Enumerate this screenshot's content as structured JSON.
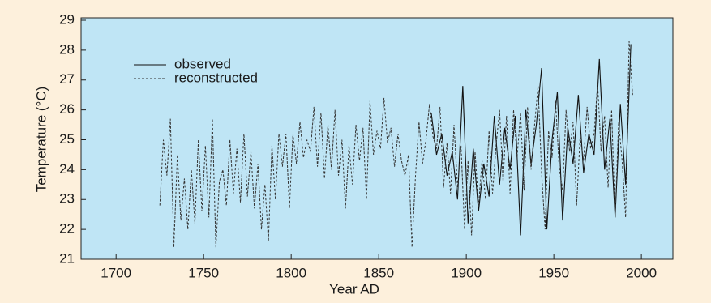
{
  "chart_data": {
    "type": "line",
    "x_label": "Year AD",
    "y_label": "Temperature (°C)",
    "xlim": [
      1680,
      2018
    ],
    "ylim": [
      21,
      29
    ],
    "xticks": [
      1700,
      1750,
      1800,
      1850,
      1900,
      1950,
      2000
    ],
    "yticks": [
      21,
      22,
      23,
      24,
      25,
      26,
      27,
      28,
      29
    ],
    "legend": "upper left",
    "series": [
      {
        "name": "observed",
        "color": "#111111",
        "style": "solid",
        "x": [
          1880,
          1883,
          1886,
          1889,
          1892,
          1895,
          1898,
          1901,
          1904,
          1907,
          1910,
          1913,
          1916,
          1919,
          1922,
          1925,
          1928,
          1931,
          1934,
          1937,
          1940,
          1943,
          1946,
          1949,
          1952,
          1955,
          1958,
          1961,
          1964,
          1967,
          1970,
          1973,
          1976,
          1979,
          1982,
          1985,
          1988,
          1991,
          1994
        ],
        "values": [
          25.9,
          24.5,
          25.2,
          23.8,
          24.6,
          23.0,
          26.8,
          22.2,
          24.7,
          22.6,
          24.2,
          23.1,
          25.8,
          23.5,
          25.4,
          24.0,
          25.8,
          21.8,
          26.0,
          24.2,
          25.5,
          27.4,
          22.0,
          25.0,
          26.6,
          22.3,
          25.4,
          24.2,
          26.5,
          23.9,
          25.2,
          24.5,
          27.7,
          24.0,
          25.7,
          22.4,
          26.2,
          23.5,
          28.2
        ]
      },
      {
        "name": "reconstructed",
        "color": "#333333",
        "style": "dashed",
        "x": [
          1725,
          1727,
          1729,
          1731,
          1733,
          1735,
          1737,
          1739,
          1741,
          1743,
          1745,
          1747,
          1749,
          1751,
          1753,
          1755,
          1757,
          1759,
          1761,
          1763,
          1765,
          1767,
          1769,
          1771,
          1773,
          1775,
          1777,
          1779,
          1781,
          1783,
          1785,
          1787,
          1789,
          1791,
          1793,
          1795,
          1797,
          1799,
          1801,
          1803,
          1805,
          1807,
          1809,
          1811,
          1813,
          1815,
          1817,
          1819,
          1821,
          1823,
          1825,
          1827,
          1829,
          1831,
          1833,
          1835,
          1837,
          1839,
          1841,
          1843,
          1845,
          1847,
          1849,
          1851,
          1853,
          1855,
          1857,
          1859,
          1861,
          1863,
          1865,
          1867,
          1869,
          1871,
          1873,
          1875,
          1877,
          1879,
          1881,
          1883,
          1885,
          1887,
          1889,
          1891,
          1893,
          1895,
          1897,
          1899,
          1901,
          1903,
          1905,
          1907,
          1909,
          1911,
          1913,
          1915,
          1917,
          1919,
          1921,
          1923,
          1925,
          1927,
          1929,
          1931,
          1933,
          1935,
          1937,
          1939,
          1941,
          1943,
          1945,
          1947,
          1949,
          1951,
          1953,
          1955,
          1957,
          1959,
          1961,
          1963,
          1965,
          1967,
          1969,
          1971,
          1973,
          1975,
          1977,
          1979,
          1981,
          1983,
          1985,
          1987,
          1989,
          1991,
          1993,
          1995
        ],
        "values": [
          22.8,
          25.0,
          23.8,
          25.7,
          21.4,
          24.5,
          22.3,
          23.7,
          22.0,
          24.0,
          22.2,
          25.0,
          22.6,
          24.8,
          22.4,
          25.7,
          21.4,
          23.6,
          24.0,
          22.8,
          25.0,
          23.2,
          24.7,
          22.9,
          25.2,
          23.1,
          24.6,
          22.7,
          24.2,
          22.0,
          23.5,
          21.6,
          24.8,
          23.0,
          25.2,
          24.1,
          25.2,
          22.7,
          25.2,
          24.2,
          25.6,
          24.4,
          25.0,
          24.6,
          26.1,
          24.1,
          25.9,
          23.7,
          25.5,
          24.0,
          26.0,
          23.8,
          25.0,
          22.7,
          24.8,
          23.5,
          25.5,
          24.3,
          25.4,
          23.0,
          26.3,
          24.5,
          25.3,
          24.7,
          26.4,
          24.9,
          25.4,
          24.1,
          25.2,
          24.3,
          23.8,
          24.5,
          21.4,
          23.8,
          25.6,
          24.2,
          25.0,
          26.2,
          25.1,
          24.7,
          26.1,
          23.4,
          24.9,
          23.2,
          25.5,
          23.4,
          24.8,
          22.0,
          24.3,
          21.8,
          24.6,
          22.8,
          24.3,
          23.0,
          25.3,
          23.2,
          24.8,
          26.0,
          23.6,
          25.8,
          23.2,
          26.0,
          24.4,
          25.9,
          23.3,
          26.1,
          24.0,
          25.5,
          26.8,
          23.9,
          22.0,
          25.3,
          24.4,
          26.3,
          24.1,
          23.3,
          26.0,
          24.6,
          25.6,
          22.8,
          25.1,
          24.3,
          26.1,
          24.7,
          25.2,
          26.9,
          24.6,
          25.8,
          23.4,
          26.0,
          22.4,
          25.6,
          24.3,
          22.4,
          28.3,
          26.5
        ]
      }
    ]
  }
}
